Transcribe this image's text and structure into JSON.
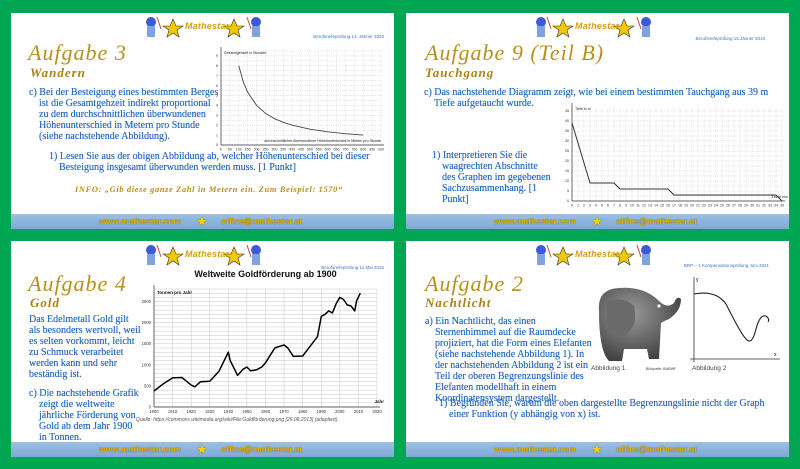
{
  "brand": {
    "name": "Mathestar",
    "website": "www.mathestar.com",
    "email": "office@mathestar.at",
    "background_color": "#00a651",
    "title_color": "#b8901d",
    "text_color": "#2a6bc7",
    "footer_color": "#8ab0d8"
  },
  "slides": [
    {
      "date": "Berufsreifeprüfung 14. Jänner 2020",
      "title": "Aufgabe 3",
      "subtitle": "Wandern",
      "text_c": "c) Bei der Besteigung eines bestimmten Berges ist die Gesamtgehzeit indirekt proportional zu dem durchschnittlichen überwundenen Höhenunterschied in Metern pro Stunde (siehe nachstehende Abbildung).",
      "task_1": "1) Lesen Sie aus der obigen Abbildung ab, welcher Höhenunterschied bei dieser Besteigung insgesamt überwunden werden muss. [1 Punkt]",
      "info": "INFO: „Gib diese ganze Zahl in Metern ein. Zum Beispiel: 1570“"
    },
    {
      "date": "Berufsreifeprüfung 15.Jänner 2019",
      "title": "Aufgabe 9 (Teil B)",
      "subtitle": "Tauchgang",
      "text_c": "c) Das nachstehende Diagramm zeigt, wie bei einem bestimmten Tauchgang aus 39 m Tiefe aufgetaucht wurde.",
      "task_1": "1) Interpretieren Sie die waagrechten Abschnitte des Graphen im gegebenen Sachzusammenhang. [1 Punkt]"
    },
    {
      "date": "Berufsreifeprüfung 11.Mai 2015",
      "title": "Aufgabe 4",
      "subtitle": "Gold",
      "intro": "Das Edelmetall Gold gilt als besonders wertvoll, weil es selten vorkommt, leicht zu Schmuck verarbeitet werden kann und sehr beständig ist.",
      "text_c": "c) Die nachstehende Grafik zeigt die weltweite jährliche Förderung von Gold ab dem Jahr 1900 in Tonnen.",
      "source": "Quelle: https://commons.wikimedia.org/wiki/File:Goldförderung.png [29.08.2013] (adaptiert)"
    },
    {
      "date": "BRP – 1 Kompensationsprüfung Juni 2021",
      "title": "Aufgabe 2",
      "subtitle": "Nachtlicht",
      "text_a": "a) Ein Nachtlicht, das einen Sternenhimmel auf die Raumdecke projiziert, hat die Form eines Elefanten (siehe nachstehende Abbildung 1). In der nachstehenden Abbildung 2 ist ein Teil der oberen Begrenzungslinie des Elefanten modellhaft in einem Koordinatensystem dargestellt.",
      "task_1": "1) Begründen Sie, warum die oben dargestellte Begrenzungslinie nicht der Graph einer Funktion (y abhängig von x) ist.",
      "caption_1": "Abbildung 1",
      "image_credit": "Bildquelle: BMBWF",
      "caption_2": "Abbildung 2",
      "axis_x": "x",
      "axis_y": "y"
    }
  ],
  "chart_data": [
    {
      "type": "line",
      "title": "",
      "ylabel": "Gesamtgehzeit in Stunden",
      "xlabel": "durchschnittlicher überwundener Höhenunterschied in Metern pro Stunde",
      "xlim": [
        0,
        900
      ],
      "ylim": [
        0,
        9.5
      ],
      "xticks": [
        0,
        50,
        100,
        150,
        200,
        250,
        300,
        350,
        400,
        450,
        500,
        550,
        600,
        650,
        700,
        750,
        800,
        850,
        900
      ],
      "yticks": [
        0,
        1,
        2,
        3,
        4,
        5,
        6,
        7,
        8,
        9
      ],
      "grid": true,
      "x": [
        100,
        125,
        150,
        200,
        250,
        300,
        350,
        400,
        500,
        600,
        700,
        800
      ],
      "y": [
        8,
        6.4,
        5.33,
        4,
        3.2,
        2.67,
        2.29,
        2,
        1.6,
        1.33,
        1.14,
        1
      ]
    },
    {
      "type": "line",
      "title": "",
      "ylabel": "Tiefe in m",
      "xlabel": "Zeit in min",
      "xlim": [
        0,
        35
      ],
      "ylim": [
        0,
        47
      ],
      "xticks": [
        0,
        1,
        2,
        3,
        4,
        5,
        6,
        7,
        8,
        9,
        10,
        11,
        12,
        13,
        14,
        15,
        16,
        17,
        18,
        19,
        20,
        21,
        22,
        23,
        24,
        25,
        26,
        27,
        28,
        29,
        30,
        31,
        32,
        33,
        34,
        35
      ],
      "yticks": [
        0,
        5,
        10,
        15,
        20,
        25,
        30,
        35,
        40,
        45
      ],
      "grid": true,
      "x": [
        0,
        3,
        7,
        8,
        16,
        17,
        34,
        35
      ],
      "y": [
        39,
        9,
        9,
        6,
        6,
        3,
        3,
        0
      ]
    },
    {
      "type": "line",
      "title": "Weltweite Goldförderung ab 1900",
      "ylabel": "Tonnen pro Jahr",
      "xlabel": "Jahr",
      "xlim": [
        1900,
        2020
      ],
      "ylim": [
        0,
        2800
      ],
      "xticks": [
        1900,
        1910,
        1920,
        1930,
        1940,
        1950,
        1960,
        1970,
        1980,
        1990,
        2000,
        2010,
        2020
      ],
      "yticks": [
        0,
        500,
        1000,
        1500,
        2000,
        2500
      ],
      "grid": true,
      "x": [
        1900,
        1905,
        1910,
        1915,
        1920,
        1922,
        1925,
        1930,
        1935,
        1940,
        1941,
        1945,
        1948,
        1950,
        1952,
        1955,
        1958,
        1960,
        1965,
        1967,
        1970,
        1972,
        1975,
        1980,
        1985,
        1988,
        1990,
        1992,
        1994,
        1996,
        1998,
        2000,
        2002,
        2004,
        2006,
        2008,
        2009,
        2011
      ],
      "y": [
        380,
        550,
        690,
        700,
        520,
        480,
        600,
        610,
        850,
        1300,
        1100,
        750,
        900,
        950,
        860,
        880,
        950,
        1050,
        1400,
        1430,
        1470,
        1400,
        1200,
        1210,
        1500,
        1670,
        2150,
        2200,
        2280,
        2230,
        2450,
        2600,
        2550,
        2420,
        2400,
        2280,
        2520,
        2700
      ]
    }
  ]
}
